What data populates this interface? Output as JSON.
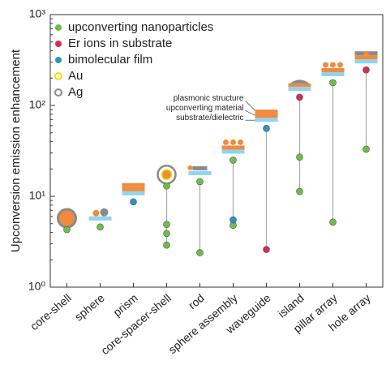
{
  "chart_data": {
    "type": "scatter",
    "y_label": "Upconversion emission enhancement",
    "log_y": true,
    "ylim": [
      1,
      1000
    ],
    "yticks": [
      {
        "value": 1,
        "label": "10⁰"
      },
      {
        "value": 10,
        "label": "10¹"
      },
      {
        "value": 100,
        "label": "10²"
      },
      {
        "value": 1000,
        "label": "10³"
      }
    ],
    "categories": [
      "core-shell",
      "sphere",
      "prism",
      "core-spacer-shell",
      "rod",
      "sphere assembly",
      "waveguide",
      "island",
      "pillar array",
      "hole array"
    ],
    "series": [
      {
        "name": "upconverting nanoparticles",
        "color": "#6cbf47",
        "categories": [
          "core-shell",
          "sphere",
          "core-spacer-shell",
          "core-spacer-shell",
          "core-spacer-shell",
          "core-spacer-shell",
          "rod",
          "rod",
          "sphere assembly",
          "sphere assembly",
          "island",
          "island",
          "pillar array",
          "pillar array",
          "hole array"
        ],
        "values": [
          4.3,
          4.6,
          13,
          4.9,
          3.9,
          2.9,
          14.5,
          2.4,
          25,
          4.8,
          27,
          11.3,
          178,
          5.2,
          33
        ]
      },
      {
        "name": "Er ions in substrate",
        "color": "#d42e50",
        "categories": [
          "waveguide",
          "island",
          "hole array"
        ],
        "values": [
          2.6,
          123,
          246
        ]
      },
      {
        "name": "bimolecular film",
        "color": "#2b93c8",
        "categories": [
          "prism",
          "sphere assembly",
          "waveguide"
        ],
        "values": [
          8.7,
          5.5,
          56
        ]
      }
    ],
    "materials": [
      {
        "name": "Au",
        "color": "#eee000"
      },
      {
        "name": "Ag",
        "color": "#8a8a8a"
      }
    ],
    "annotations": [
      "plasmonic structure",
      "upconverting material",
      "substrate/dielectric"
    ]
  }
}
